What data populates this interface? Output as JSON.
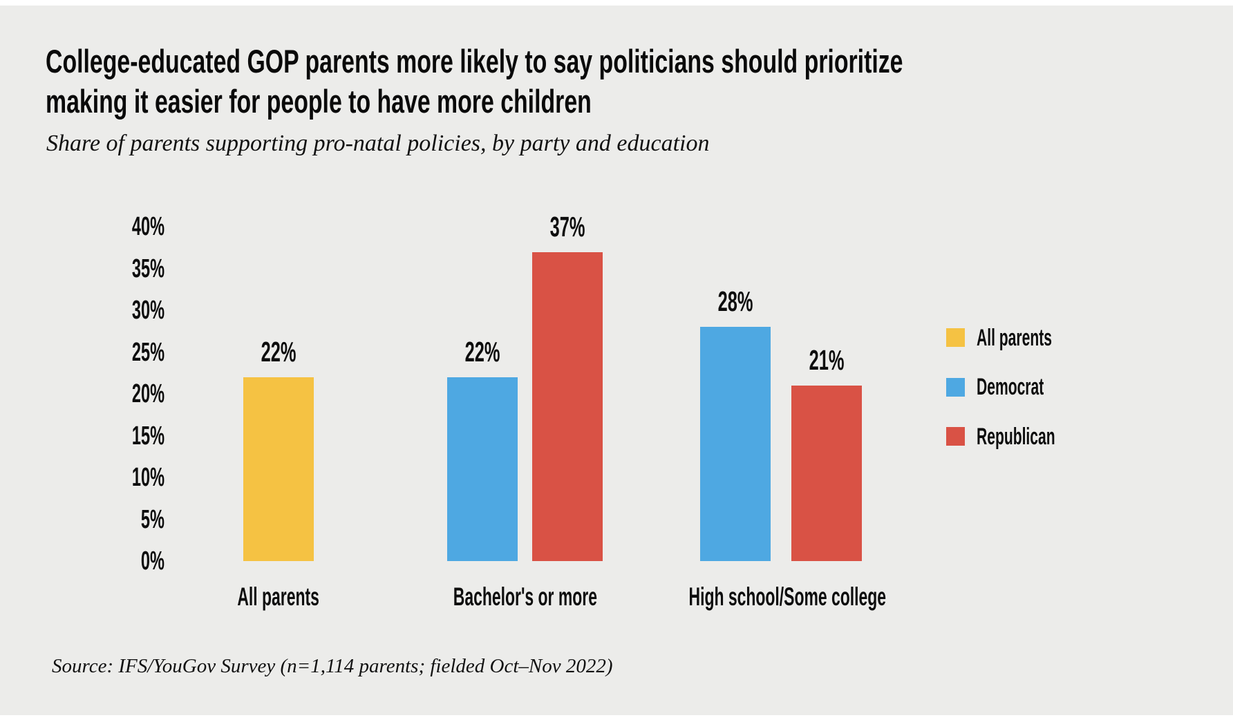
{
  "page": {
    "background_color": "#ffffff",
    "panel_color": "#ECECEA",
    "text_color": "#0d0d0d"
  },
  "header": {
    "title": "College-educated GOP parents more likely to say politicians should prioritize making it easier for people to have more children",
    "title_lines": [
      "College-educated GOP parents more likely to say politicians should prioritize",
      "making it easier for people to have more children"
    ],
    "subtitle": "Share of parents supporting pro-natal policies, by party and education"
  },
  "footer": {
    "source": "Source: IFS/YouGov Survey (n=1,114 parents; fielded Oct–Nov 2022)"
  },
  "chart_data": {
    "type": "bar",
    "title": "College-educated GOP parents more likely to say politicians should prioritize making it easier for people to have more children",
    "subtitle": "Share of parents supporting pro-natal policies, by party and education",
    "source": "Source: IFS/YouGov Survey (n=1,114 parents; fielded Oct–Nov 2022)",
    "categories": [
      "All parents",
      "Bachelor's or more",
      "High school/Some college"
    ],
    "series": [
      {
        "name": "All parents",
        "color": "#F5C243",
        "values": [
          22,
          null,
          null
        ]
      },
      {
        "name": "Democrat",
        "color": "#4EA8E2",
        "values": [
          null,
          22,
          28
        ]
      },
      {
        "name": "Republican",
        "color": "#D95245",
        "values": [
          null,
          37,
          21
        ]
      }
    ],
    "value_labels": [
      "22%",
      "22%",
      "37%",
      "28%",
      "21%"
    ],
    "unit": "%",
    "xlabel": "",
    "ylabel": "",
    "ylim": [
      0,
      40
    ],
    "y_tick_step": 5,
    "y_tick_labels": [
      "0%",
      "5%",
      "10%",
      "15%",
      "20%",
      "25%",
      "30%",
      "35%",
      "40%"
    ],
    "grid": false,
    "legend_position": "right",
    "legend_entries": [
      "All parents",
      "Democrat",
      "Republican"
    ]
  }
}
